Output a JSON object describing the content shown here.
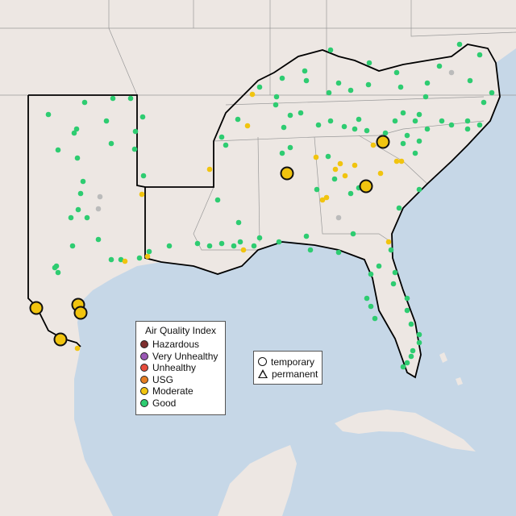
{
  "map": {
    "ocean_color": "#c6d7e7",
    "land_color": "#ede7e3"
  },
  "aqi_legend": {
    "title": "Air Quality Index",
    "items": [
      {
        "label": "Hazardous",
        "color": "#7e2f2f"
      },
      {
        "label": "Very Unhealthy",
        "color": "#9b59b6"
      },
      {
        "label": "Unhealthy",
        "color": "#e74c3c"
      },
      {
        "label": "USG",
        "color": "#e67e22"
      },
      {
        "label": "Moderate",
        "color": "#f1c40f"
      },
      {
        "label": "Good",
        "color": "#2ecc71"
      }
    ]
  },
  "type_legend": {
    "items": [
      {
        "label": "temporary",
        "icon": "circle-icon"
      },
      {
        "label": "permanent",
        "icon": "triangle-icon"
      }
    ]
  }
}
